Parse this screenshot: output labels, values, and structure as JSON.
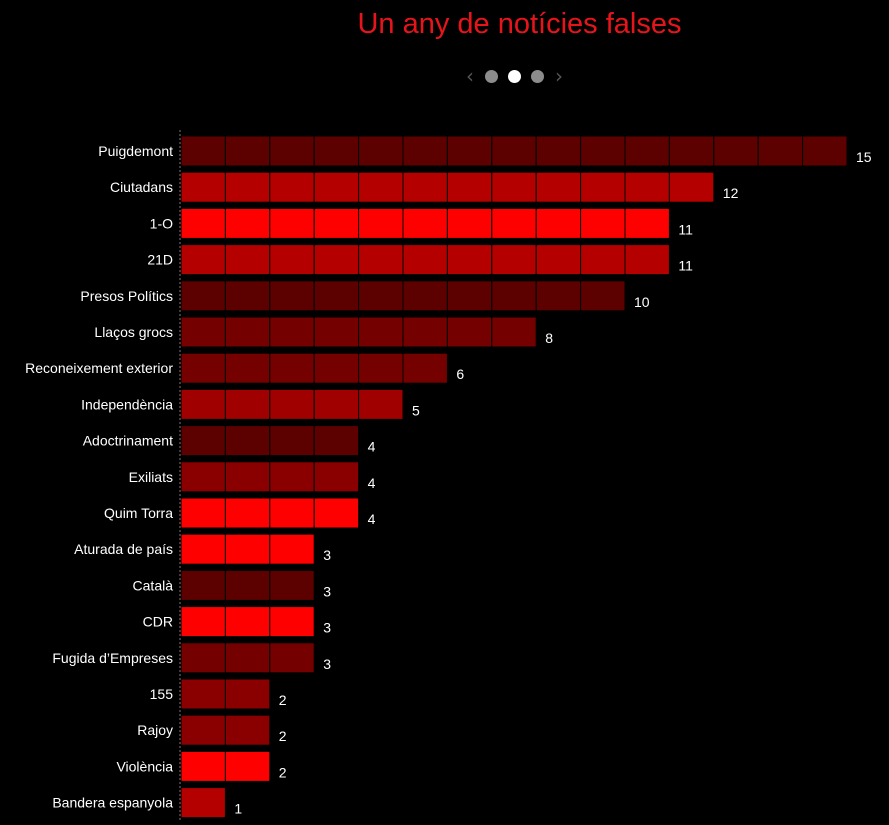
{
  "title": "Un any de notícies falses",
  "nav": {
    "prev_icon": "chevron-left-icon",
    "next_icon": "chevron-right-icon",
    "dots": 3,
    "active_dot": 2
  },
  "chart_data": {
    "type": "bar",
    "orientation": "horizontal",
    "style": "unit-blocks",
    "title": "Un any de notícies falses",
    "categories": [
      "Puigdemont",
      "Ciutadans",
      "1-O",
      "21D",
      "Presos Polítics",
      "Llaços grocs",
      "Reconeixement exterior",
      "Independència",
      "Adoctrinament",
      "Exiliats",
      "Quim Torra",
      "Aturada de país",
      "Català",
      "CDR",
      "Fugida d’Empreses",
      "155",
      "Rajoy",
      "Violència",
      "Bandera espanyola"
    ],
    "values": [
      15,
      12,
      11,
      11,
      10,
      8,
      6,
      5,
      4,
      4,
      4,
      3,
      3,
      3,
      3,
      2,
      2,
      2,
      1
    ],
    "colors": [
      "#5c0000",
      "#b50000",
      "#ff0000",
      "#b50000",
      "#5c0000",
      "#740000",
      "#740000",
      "#a00000",
      "#5c0000",
      "#8a0000",
      "#ff0000",
      "#ff0000",
      "#5c0000",
      "#ff0000",
      "#740000",
      "#8a0000",
      "#8a0000",
      "#ff0000",
      "#b50000"
    ],
    "label_color": "#ffffff",
    "background": "#000000",
    "grid": false,
    "legend": "none"
  }
}
